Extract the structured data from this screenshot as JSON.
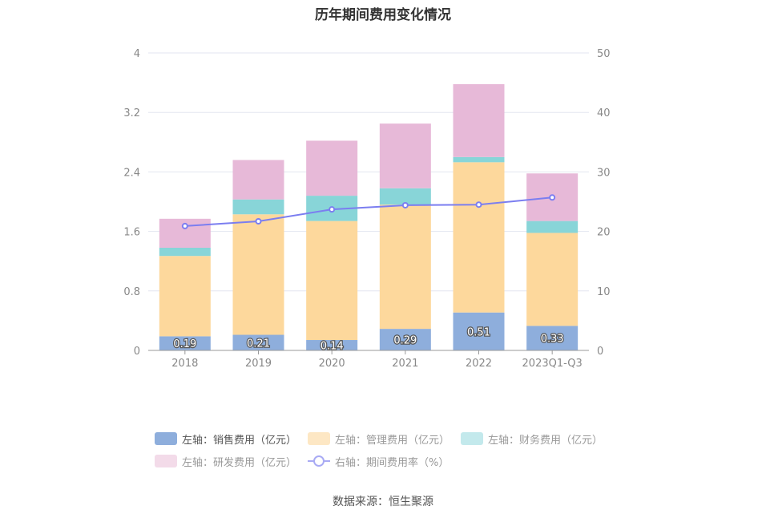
{
  "chart_data": {
    "type": "bar",
    "title": "历年期间费用变化情况",
    "categories": [
      "2018",
      "2019",
      "2020",
      "2021",
      "2022",
      "2023Q1-Q3"
    ],
    "left_axis": {
      "min": 0,
      "max": 4,
      "ticks": [
        "0",
        "0.8",
        "1.6",
        "2.4",
        "3.2",
        "4"
      ]
    },
    "right_axis": {
      "min": 0,
      "max": 50,
      "ticks": [
        "0",
        "10",
        "20",
        "30",
        "40",
        "50"
      ]
    },
    "series": [
      {
        "name": "左轴：销售费用（亿元）",
        "axis": "left",
        "stack": true,
        "color": "#8eaedc",
        "values": [
          0.19,
          0.21,
          0.14,
          0.29,
          0.51,
          0.33
        ],
        "labels": [
          "0.19",
          "0.21",
          "0.14",
          "0.29",
          "0.51",
          "0.33"
        ]
      },
      {
        "name": "左轴：管理费用（亿元）",
        "axis": "left",
        "stack": true,
        "color": "#fdd89c",
        "values": [
          1.08,
          1.62,
          1.6,
          1.67,
          2.02,
          1.25
        ]
      },
      {
        "name": "左轴：财务费用（亿元）",
        "axis": "left",
        "stack": true,
        "color": "#88d5d8",
        "values": [
          0.11,
          0.2,
          0.34,
          0.22,
          0.07,
          0.16
        ]
      },
      {
        "name": "左轴：研发费用（亿元）",
        "axis": "left",
        "stack": true,
        "color": "#e7b9d8",
        "values": [
          0.39,
          0.53,
          0.74,
          0.87,
          0.98,
          0.64
        ]
      },
      {
        "name": "右轴：期间费用率（%）",
        "axis": "right",
        "type": "line",
        "color": "#7b7ef0",
        "values": [
          20.9,
          21.7,
          23.7,
          24.4,
          24.5,
          25.7
        ]
      }
    ],
    "grid": true,
    "legend_position": "bottom"
  },
  "legend": {
    "items": [
      {
        "label": "左轴：销售费用（亿元）",
        "color": "#8eaedc"
      },
      {
        "label": "左轴：管理费用（亿元）",
        "color": "#fde7c4"
      },
      {
        "label": "左轴：财务费用（亿元）",
        "color": "#c3e9ec"
      },
      {
        "label": "左轴：研发费用（亿元）",
        "color": "#f3dbe9"
      },
      {
        "label": "右轴：期间费用率（%）",
        "color": "#a9abf4"
      }
    ]
  },
  "source": "数据来源：恒生聚源"
}
